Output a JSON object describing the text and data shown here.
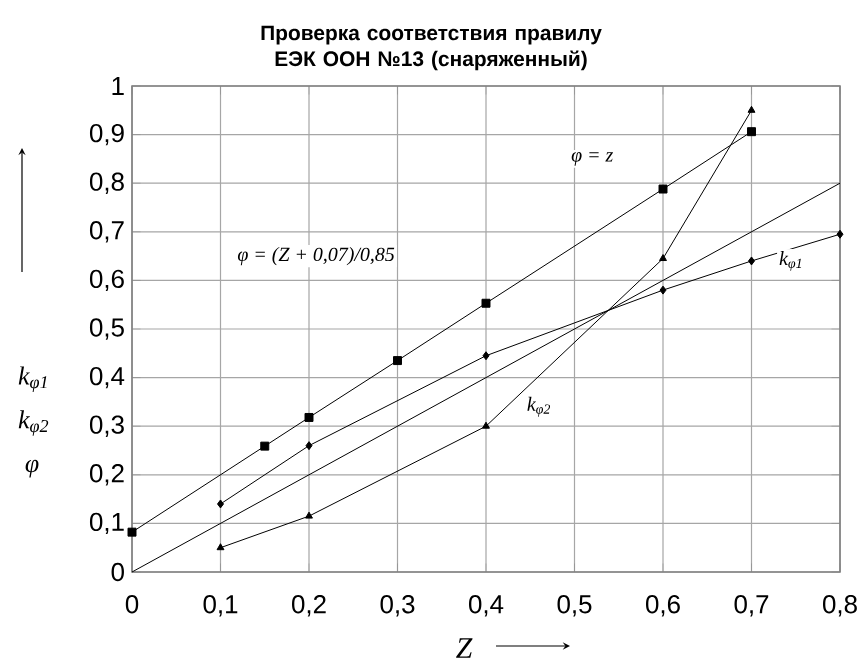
{
  "chart_data": {
    "type": "line",
    "title": "Проверка соответствия правилу ЕЭК ООН №13 (снаряженный)",
    "xlabel": "Z",
    "ylabel": "k$_{φ1}$ k$_{φ2}$ φ",
    "xlim": [
      0,
      0.8
    ],
    "ylim": [
      0,
      1
    ],
    "xticks": [
      0,
      {
        "value": 0.1,
        "label": "0,1"
      },
      {
        "value": 0.2,
        "label": "0,2"
      },
      {
        "value": 0.3,
        "label": "0,3"
      },
      {
        "value": 0.4,
        "label": "0,4"
      },
      {
        "value": 0.5,
        "label": "0,5"
      },
      {
        "value": 0.6,
        "label": "0,6"
      },
      {
        "value": 0.7,
        "label": "0,7"
      },
      {
        "value": 0.8,
        "label": "0,8"
      }
    ],
    "yticks": [
      0,
      {
        "value": 0.1,
        "label": "0,1"
      },
      {
        "value": 0.2,
        "label": "0,2"
      },
      {
        "value": 0.3,
        "label": "0,3"
      },
      {
        "value": 0.4,
        "label": "0,4"
      },
      {
        "value": 0.5,
        "label": "0,5"
      },
      {
        "value": 0.6,
        "label": "0,6"
      },
      {
        "value": 0.7,
        "label": "0,7"
      },
      {
        "value": 0.8,
        "label": "0,8"
      },
      {
        "value": 0.9,
        "label": "0,9"
      },
      1
    ],
    "grid": true,
    "series": [
      {
        "color": "#000000",
        "marker": "none",
        "x": [
          0,
          0.8
        ],
        "values": [
          0,
          0.8
        ]
      },
      {
        "color": "#000000",
        "marker": "square",
        "x": [
          0,
          0.15,
          0.2,
          0.3,
          0.4,
          0.6,
          0.7
        ],
        "values": [
          0.082,
          0.259,
          0.318,
          0.435,
          0.553,
          0.788,
          0.906
        ]
      },
      {
        "color": "#000000",
        "marker": "diamond",
        "x": [
          0.1,
          0.2,
          0.4,
          0.6,
          0.7,
          0.8
        ],
        "values": [
          0.14,
          0.26,
          0.445,
          0.58,
          0.64,
          0.695
        ]
      },
      {
        "color": "#000000",
        "marker": "triangle",
        "x": [
          0.1,
          0.2,
          0.4,
          0.6,
          0.7
        ],
        "values": [
          0.05,
          0.115,
          0.3,
          0.645,
          0.95
        ]
      }
    ],
    "annotations": [
      {
        "text": "φ = z",
        "x": 0.52,
        "y": 0.85
      },
      "φ = (Z + 0,07)/0,85",
      {
        "text": "k$_{φ1}$",
        "x": 0.745,
        "y": 0.64
      },
      {
        "text": "k$_{φ2}$",
        "x": 0.46,
        "y": 0.34
      }
    ]
  }
}
